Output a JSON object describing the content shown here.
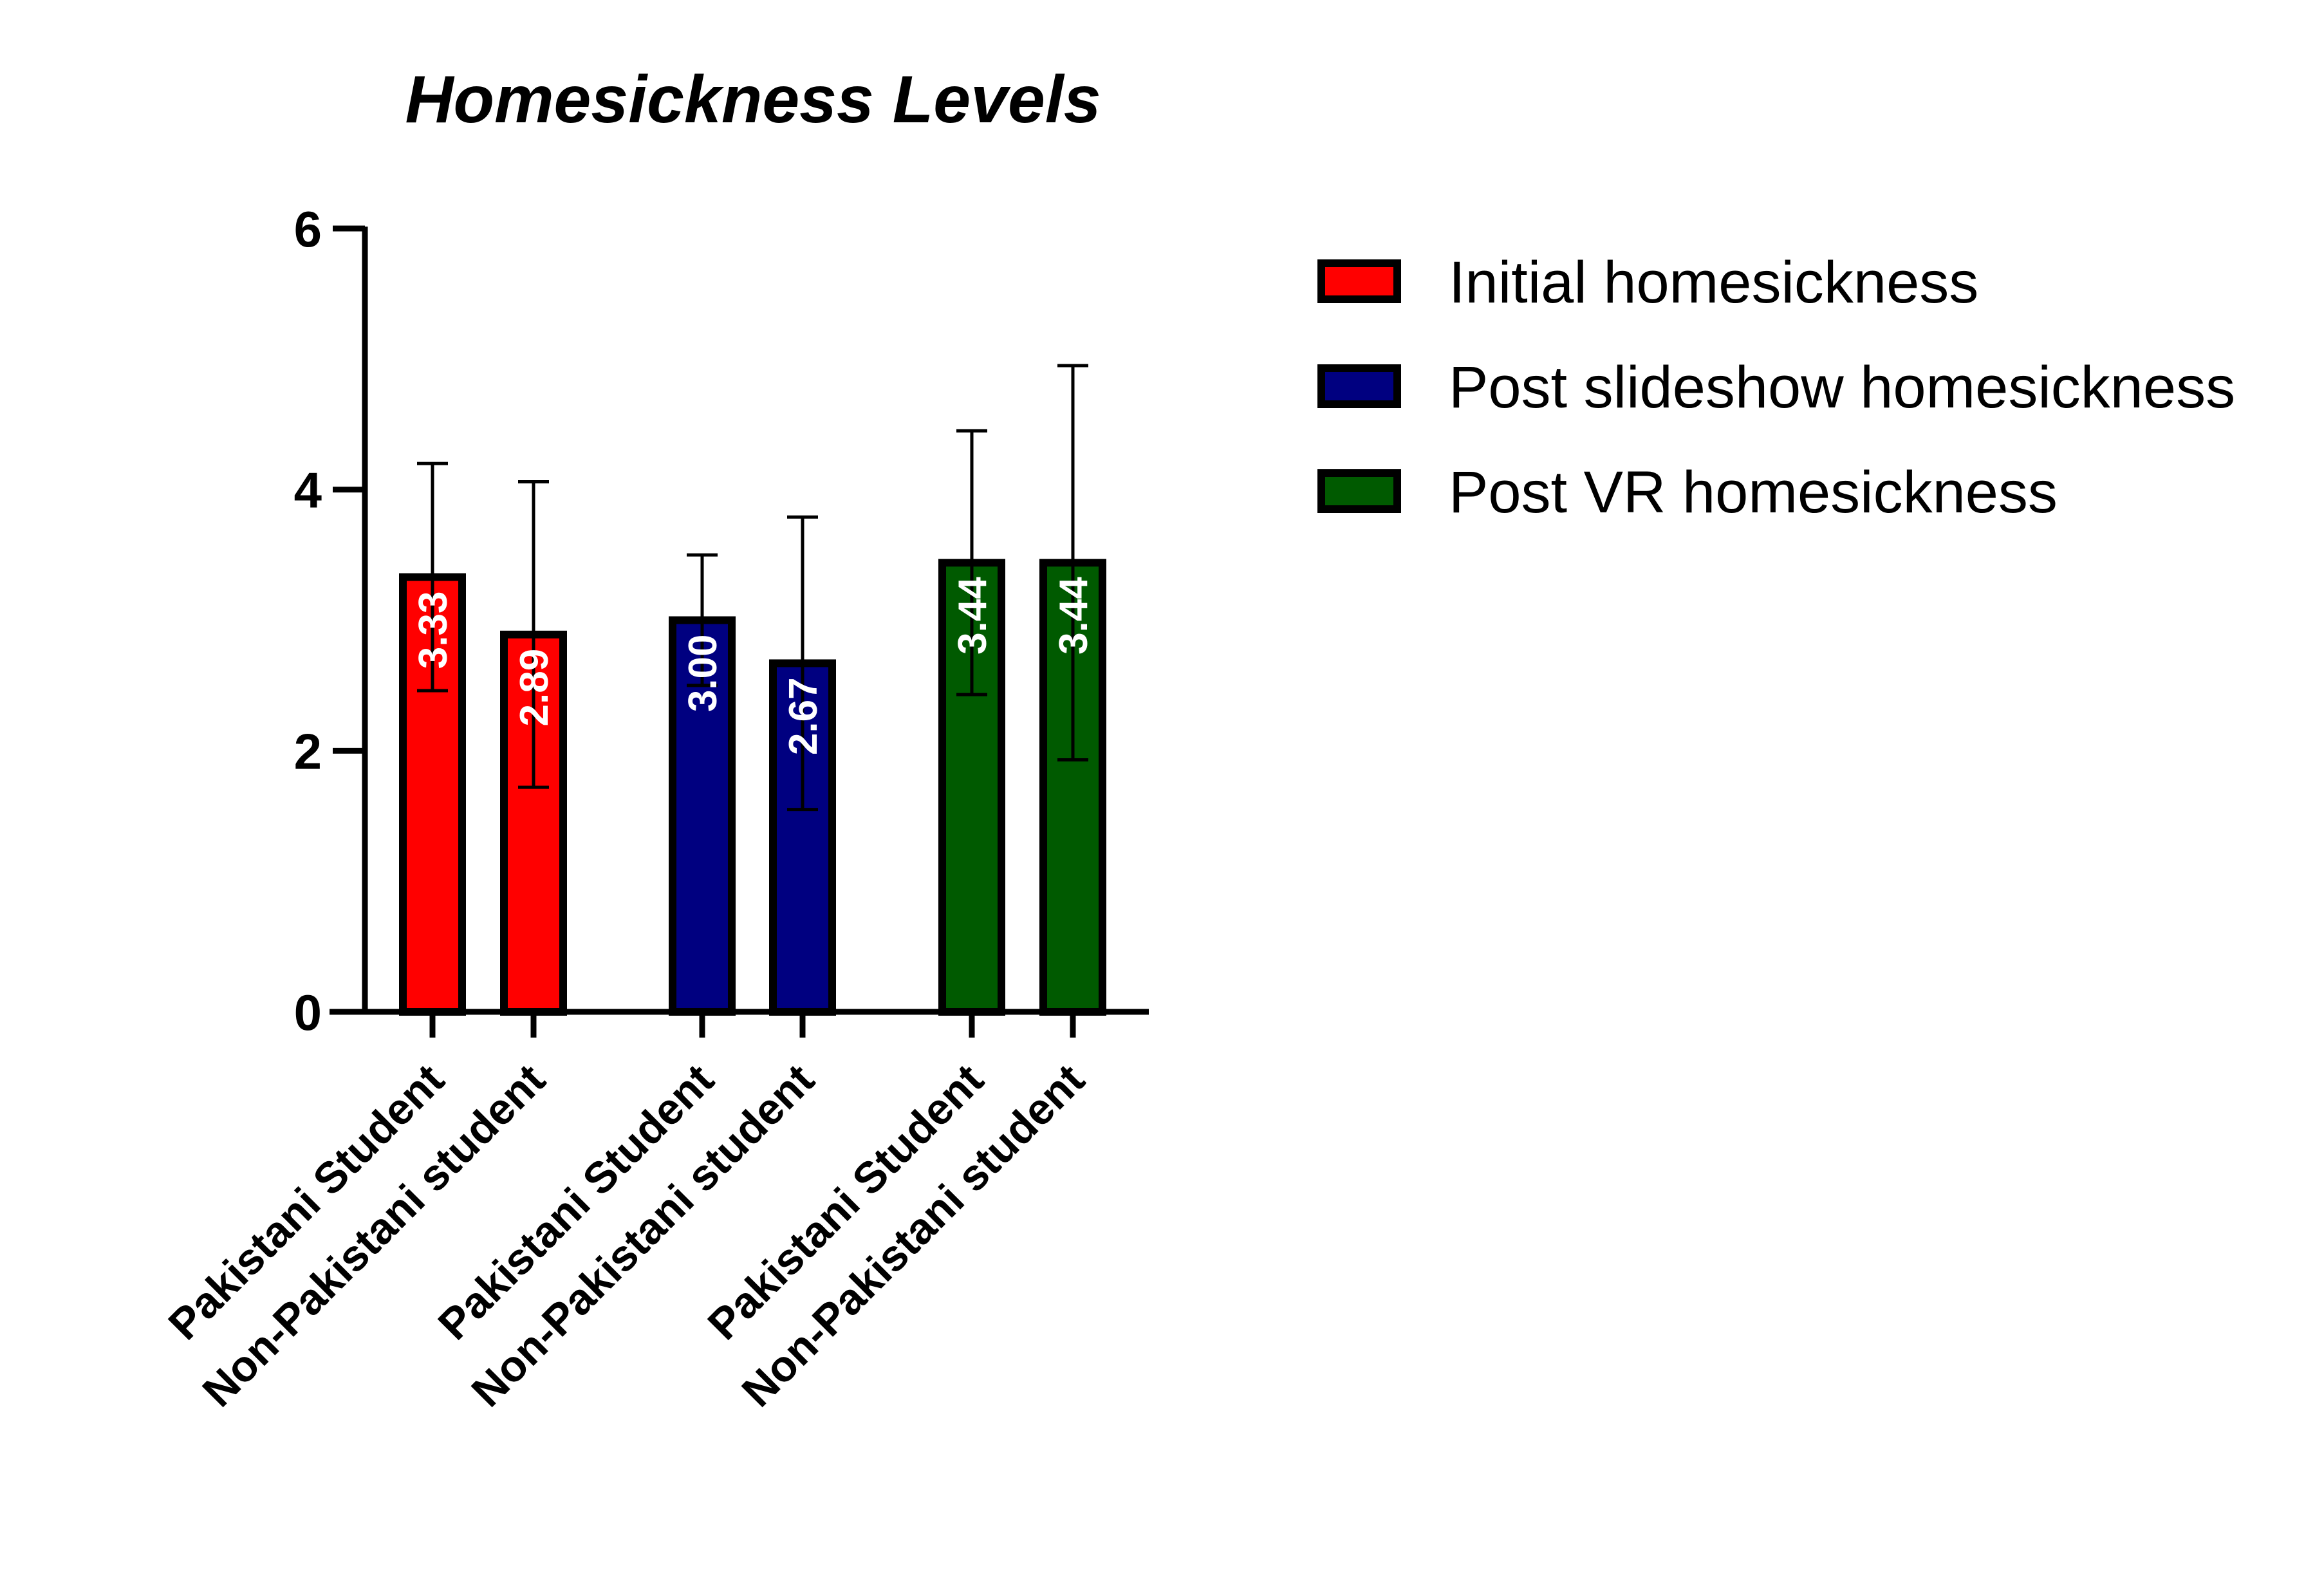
{
  "chart_data": {
    "type": "bar",
    "title": "Homesickness Levels",
    "xlabel": "",
    "ylabel": "",
    "ylim": [
      0,
      6
    ],
    "yticks": [
      0,
      2,
      4,
      6
    ],
    "categories": [
      "Pakistani Student",
      "Non-Pakistani student"
    ],
    "series": [
      {
        "name": "Initial homesickness",
        "color": "#ff0000",
        "values": [
          3.33,
          2.89
        ],
        "labels": [
          "3.33",
          "2.89"
        ],
        "errors": [
          0.87,
          1.17
        ]
      },
      {
        "name": "Post slideshow homesickness",
        "color": "#000080",
        "values": [
          3.0,
          2.67
        ],
        "labels": [
          "3.00",
          "2.67"
        ],
        "errors": [
          0.5,
          1.12
        ]
      },
      {
        "name": "Post VR homesickness",
        "color": "#005a00",
        "values": [
          3.44,
          3.44
        ],
        "labels": [
          "3.44",
          "3.44"
        ],
        "errors": [
          1.01,
          1.51
        ]
      }
    ],
    "grid": false,
    "legend_position": "top-right",
    "error_bars": true
  }
}
